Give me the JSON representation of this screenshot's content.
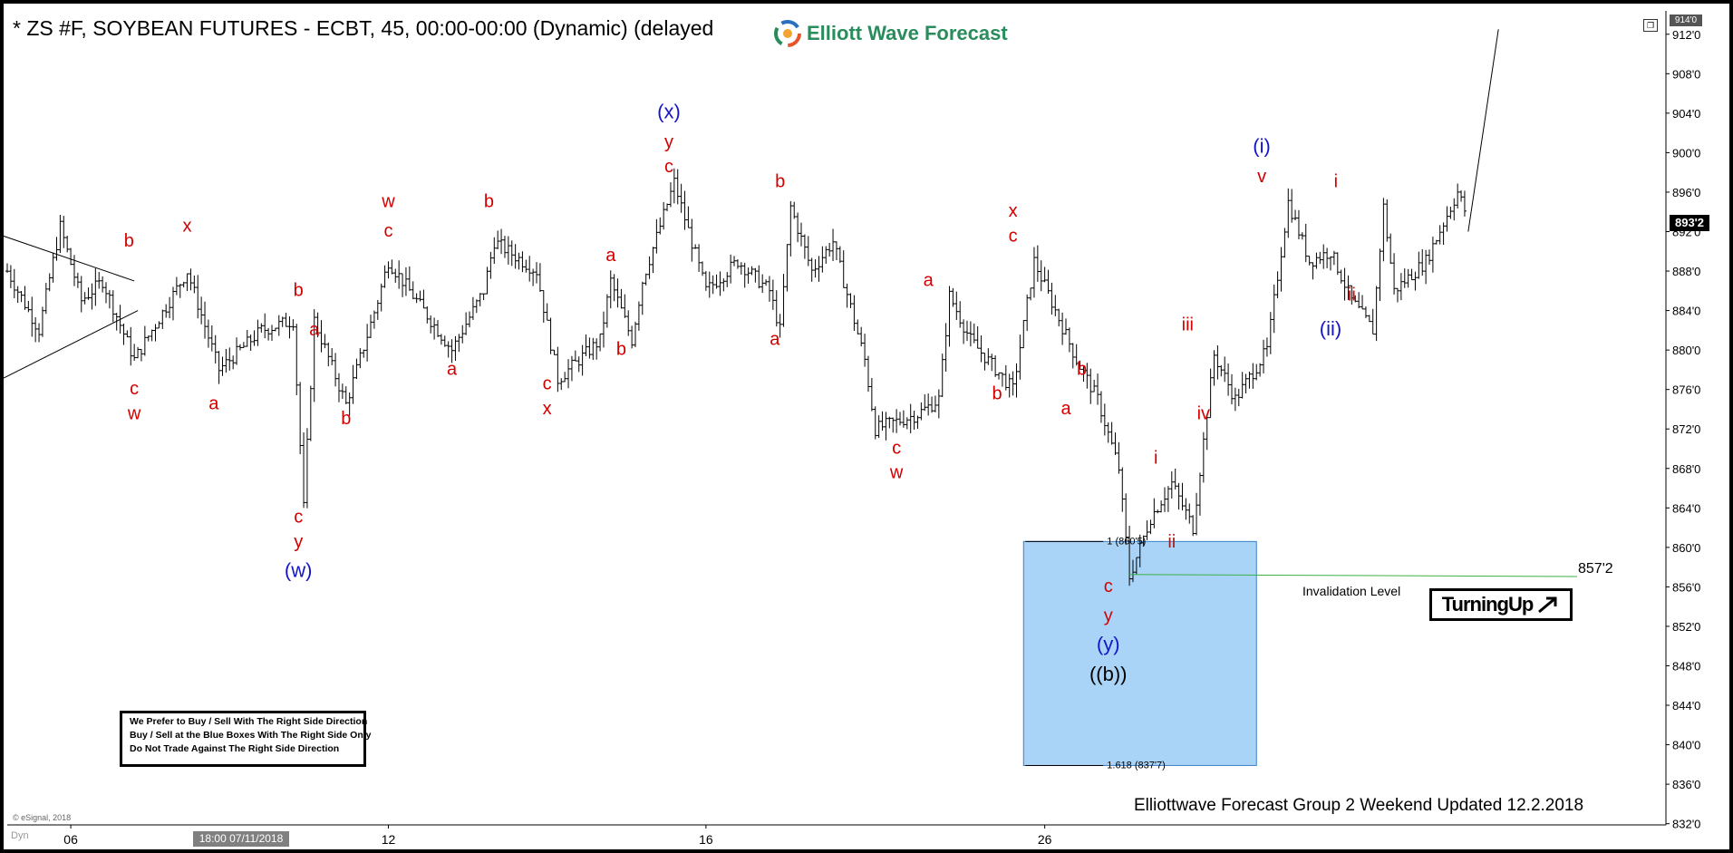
{
  "header": {
    "title": "* ZS #F, SOYBEAN FUTURES - ECBT, 45, 00:00-00:00 (Dynamic) (delayed",
    "logo_text": "Elliott Wave Forecast"
  },
  "info_box": {
    "lines": [
      "We Prefer to Buy / Sell With The Right Side Direction",
      "Buy / Sell at the Blue Boxes With The Right Side Only",
      "Do Not Trade Against The Right Side Direction"
    ]
  },
  "turning_badge": "TurningUp",
  "footer": "Elliottwave Forecast Group 2 Weekend Updated 12.2.2018",
  "esignal": "© eSignal, 2018",
  "dyn_label": "Dyn",
  "crosshair_date": "18:00 07/11/2018",
  "current_price": "893'2",
  "top_price": "914'0",
  "colors": {
    "background": "#ffffff",
    "price_bars": "#000000",
    "wave_red": "#d40000",
    "wave_blue": "#1515c8",
    "blue_box": "#aad4f7",
    "invalidation_line": "#3cb043"
  },
  "chart_data": {
    "type": "ohlc",
    "symbol": "ZS #F",
    "interval": "45",
    "y_ticks": [
      "832'0",
      "836'0",
      "840'0",
      "844'0",
      "848'0",
      "852'0",
      "856'0",
      "860'0",
      "864'0",
      "868'0",
      "872'0",
      "876'0",
      "880'0",
      "884'0",
      "888'0",
      "892'0",
      "896'0",
      "900'0",
      "904'0",
      "908'0",
      "912'0"
    ],
    "y_range": [
      830.5,
      914.0
    ],
    "x_labels": [
      {
        "label": "06",
        "bar": 6
      },
      {
        "label": "12",
        "bar": 36
      },
      {
        "label": "16",
        "bar": 66
      },
      {
        "label": "26",
        "bar": 98
      }
    ],
    "bars_total": 138,
    "path": [
      {
        "bar": 0,
        "p": 888
      },
      {
        "bar": 3,
        "p": 882
      },
      {
        "bar": 5,
        "p": 892.5
      },
      {
        "bar": 7,
        "p": 885
      },
      {
        "bar": 9,
        "p": 887
      },
      {
        "bar": 12,
        "p": 879
      },
      {
        "bar": 17,
        "p": 888
      },
      {
        "bar": 20,
        "p": 878
      },
      {
        "bar": 24,
        "p": 882
      },
      {
        "bar": 27,
        "p": 883
      },
      {
        "bar": 28,
        "p": 864
      },
      {
        "bar": 29,
        "p": 883
      },
      {
        "bar": 32,
        "p": 874.5
      },
      {
        "bar": 35,
        "p": 885
      },
      {
        "bar": 36,
        "p": 889
      },
      {
        "bar": 38,
        "p": 886
      },
      {
        "bar": 42,
        "p": 880
      },
      {
        "bar": 45,
        "p": 886
      },
      {
        "bar": 46,
        "p": 891
      },
      {
        "bar": 50,
        "p": 888
      },
      {
        "bar": 52,
        "p": 877
      },
      {
        "bar": 56,
        "p": 881
      },
      {
        "bar": 57,
        "p": 887
      },
      {
        "bar": 59,
        "p": 881
      },
      {
        "bar": 60,
        "p": 887
      },
      {
        "bar": 63,
        "p": 897
      },
      {
        "bar": 66,
        "p": 886
      },
      {
        "bar": 69,
        "p": 889
      },
      {
        "bar": 72,
        "p": 886
      },
      {
        "bar": 73,
        "p": 882
      },
      {
        "bar": 74,
        "p": 894.5
      },
      {
        "bar": 76,
        "p": 888
      },
      {
        "bar": 78,
        "p": 891
      },
      {
        "bar": 81,
        "p": 879
      },
      {
        "bar": 82,
        "p": 872
      },
      {
        "bar": 86,
        "p": 873.5
      },
      {
        "bar": 88,
        "p": 875
      },
      {
        "bar": 89,
        "p": 885.5
      },
      {
        "bar": 91,
        "p": 881
      },
      {
        "bar": 95,
        "p": 876
      },
      {
        "bar": 97,
        "p": 889
      },
      {
        "bar": 99,
        "p": 884
      },
      {
        "bar": 101,
        "p": 879
      },
      {
        "bar": 103,
        "p": 875
      },
      {
        "bar": 105,
        "p": 868
      },
      {
        "bar": 106,
        "p": 857
      },
      {
        "bar": 108,
        "p": 863
      },
      {
        "bar": 110,
        "p": 866.5
      },
      {
        "bar": 112,
        "p": 862
      },
      {
        "bar": 114,
        "p": 879.5
      },
      {
        "bar": 116,
        "p": 875
      },
      {
        "bar": 119,
        "p": 880
      },
      {
        "bar": 121,
        "p": 895
      },
      {
        "bar": 123,
        "p": 889
      },
      {
        "bar": 125,
        "p": 890
      },
      {
        "bar": 127,
        "p": 885
      },
      {
        "bar": 129,
        "p": 882
      },
      {
        "bar": 130,
        "p": 894.5
      },
      {
        "bar": 131,
        "p": 886
      },
      {
        "bar": 134,
        "p": 889
      },
      {
        "bar": 137,
        "p": 896
      },
      {
        "bar": 138,
        "p": 893.25
      }
    ],
    "blue_box": {
      "bar_start": 96,
      "bar_end": 118,
      "price_top": 860.6,
      "price_bottom": 837.9
    },
    "fib_levels": [
      {
        "label": "1 (860'5)",
        "price": 860.6
      },
      {
        "label": "1.618 (837'7)",
        "price": 837.9
      }
    ],
    "invalidation": {
      "label": "Invalidation Level",
      "price_label": "857'2",
      "price": 857.25,
      "bar_start": 106
    },
    "triangle": {
      "bar_start": 0,
      "bar_end": 12,
      "top_start": 893,
      "top_end": 887,
      "bottom_start": 879,
      "bottom_end": 884
    },
    "projection": {
      "bar_start": 138,
      "p_start": 892,
      "bar_end": 140,
      "p_end": 912.5
    },
    "wave_labels": [
      {
        "text": "b",
        "bar": 11.5,
        "price": 890.5,
        "color": "red"
      },
      {
        "text": "x",
        "bar": 17,
        "price": 892,
        "color": "red"
      },
      {
        "text": "c",
        "bar": 12,
        "price": 875.5,
        "color": "red"
      },
      {
        "text": "w",
        "bar": 12,
        "price": 873,
        "color": "red"
      },
      {
        "text": "a",
        "bar": 19.5,
        "price": 874,
        "color": "red"
      },
      {
        "text": "b",
        "bar": 27.5,
        "price": 885.5,
        "color": "red"
      },
      {
        "text": "a",
        "bar": 29,
        "price": 881.5,
        "color": "red"
      },
      {
        "text": "c",
        "bar": 27.5,
        "price": 862.5,
        "color": "red"
      },
      {
        "text": "y",
        "bar": 27.5,
        "price": 860,
        "color": "red"
      },
      {
        "text": "(w)",
        "bar": 27.5,
        "price": 857,
        "color": "blue"
      },
      {
        "text": "b",
        "bar": 32,
        "price": 872.5,
        "color": "red"
      },
      {
        "text": "w",
        "bar": 36,
        "price": 894.5,
        "color": "red"
      },
      {
        "text": "c",
        "bar": 36,
        "price": 891.5,
        "color": "red"
      },
      {
        "text": "a",
        "bar": 42,
        "price": 877.5,
        "color": "red"
      },
      {
        "text": "b",
        "bar": 45.5,
        "price": 894.5,
        "color": "red"
      },
      {
        "text": "c",
        "bar": 51,
        "price": 876,
        "color": "red"
      },
      {
        "text": "x",
        "bar": 51,
        "price": 873.5,
        "color": "red"
      },
      {
        "text": "a",
        "bar": 57,
        "price": 889,
        "color": "red"
      },
      {
        "text": "b",
        "bar": 58,
        "price": 879.5,
        "color": "red"
      },
      {
        "text": "(x)",
        "bar": 62.5,
        "price": 903.5,
        "color": "blue"
      },
      {
        "text": "y",
        "bar": 62.5,
        "price": 900.5,
        "color": "red"
      },
      {
        "text": "c",
        "bar": 62.5,
        "price": 898,
        "color": "red"
      },
      {
        "text": "b",
        "bar": 73,
        "price": 896.5,
        "color": "red"
      },
      {
        "text": "a",
        "bar": 72.5,
        "price": 880.5,
        "color": "red"
      },
      {
        "text": "c",
        "bar": 84,
        "price": 869.5,
        "color": "red"
      },
      {
        "text": "w",
        "bar": 84,
        "price": 867,
        "color": "red"
      },
      {
        "text": "a",
        "bar": 87,
        "price": 886.5,
        "color": "red"
      },
      {
        "text": "b",
        "bar": 93.5,
        "price": 875,
        "color": "red"
      },
      {
        "text": "x",
        "bar": 95,
        "price": 893.5,
        "color": "red"
      },
      {
        "text": "c",
        "bar": 95,
        "price": 891,
        "color": "red"
      },
      {
        "text": "b",
        "bar": 101.5,
        "price": 877.5,
        "color": "red"
      },
      {
        "text": "a",
        "bar": 100,
        "price": 873.5,
        "color": "red"
      },
      {
        "text": "i",
        "bar": 108.5,
        "price": 868.5,
        "color": "red"
      },
      {
        "text": "ii",
        "bar": 110,
        "price": 860,
        "color": "darkred"
      },
      {
        "text": "c",
        "bar": 104,
        "price": 855.5,
        "color": "red"
      },
      {
        "text": "y",
        "bar": 104,
        "price": 852.5,
        "color": "red"
      },
      {
        "text": "(y)",
        "bar": 104,
        "price": 849.5,
        "color": "blue"
      },
      {
        "text": "((b))",
        "bar": 104,
        "price": 846.5,
        "color": "black"
      },
      {
        "text": "iii",
        "bar": 111.5,
        "price": 882,
        "color": "red"
      },
      {
        "text": "iv",
        "bar": 113,
        "price": 873,
        "color": "red"
      },
      {
        "text": "(i)",
        "bar": 118.5,
        "price": 900,
        "color": "blue"
      },
      {
        "text": "v",
        "bar": 118.5,
        "price": 897,
        "color": "red"
      },
      {
        "text": "i",
        "bar": 125.5,
        "price": 896.5,
        "color": "red"
      },
      {
        "text": "ii",
        "bar": 127,
        "price": 885,
        "color": "red"
      },
      {
        "text": "(ii)",
        "bar": 125,
        "price": 881.5,
        "color": "blue"
      }
    ]
  }
}
